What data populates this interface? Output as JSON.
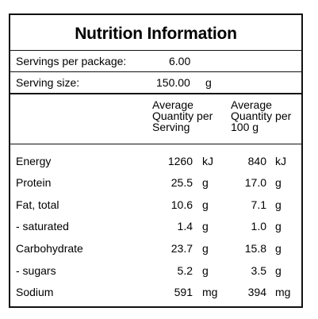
{
  "title": "Nutrition Information",
  "servings_per_package": {
    "label": "Servings per package:",
    "value": "6.00"
  },
  "serving_size": {
    "label": "Serving size:",
    "value": "150.00",
    "unit": "g"
  },
  "columns": {
    "per_serving": [
      "Average",
      "Quantity per",
      "Serving"
    ],
    "per_100g": [
      "Average",
      "Quantity per",
      "100 g"
    ]
  },
  "rows": [
    {
      "label": "Energy",
      "serving_value": "1260",
      "serving_unit": "kJ",
      "per100_value": "840",
      "per100_unit": "kJ"
    },
    {
      "label": "Protein",
      "serving_value": "25.5",
      "serving_unit": "g",
      "per100_value": "17.0",
      "per100_unit": "g"
    },
    {
      "label": "Fat, total",
      "serving_value": "10.6",
      "serving_unit": "g",
      "per100_value": "7.1",
      "per100_unit": "g"
    },
    {
      "label": "- saturated",
      "serving_value": "1.4",
      "serving_unit": "g",
      "per100_value": "1.0",
      "per100_unit": "g"
    },
    {
      "label": "Carbohydrate",
      "serving_value": "23.7",
      "serving_unit": "g",
      "per100_value": "15.8",
      "per100_unit": "g"
    },
    {
      "label": "- sugars",
      "serving_value": "5.2",
      "serving_unit": "g",
      "per100_value": "3.5",
      "per100_unit": "g"
    },
    {
      "label": "Sodium",
      "serving_value": "591",
      "serving_unit": "mg",
      "per100_value": "394",
      "per100_unit": "mg"
    }
  ]
}
